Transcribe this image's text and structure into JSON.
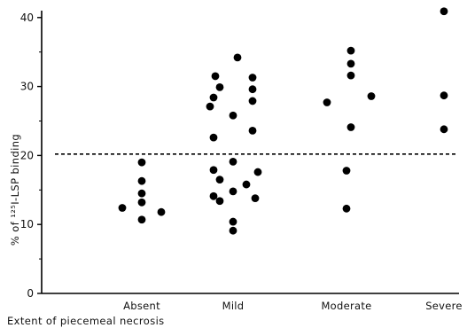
{
  "chart_data": {
    "type": "scatter",
    "title": "",
    "xlabel": "Extent of piecemeal necrosis",
    "ylabel": "% of ¹²⁵I-LSP binding",
    "categories": [
      "Absent",
      "Mild",
      "Moderate",
      "Severe"
    ],
    "ylim": [
      0,
      41
    ],
    "yticks": [
      0,
      10,
      20,
      30,
      40
    ],
    "reference_line": {
      "y": 20.2,
      "style": "dashed"
    },
    "grid": false,
    "legend": "none",
    "colors": {
      "points": "#000000",
      "axis": "#000000"
    },
    "points": [
      {
        "category": "Absent",
        "offset": 0.0,
        "y": 19.0
      },
      {
        "category": "Absent",
        "offset": 0.0,
        "y": 16.3
      },
      {
        "category": "Absent",
        "offset": 0.0,
        "y": 14.5
      },
      {
        "category": "Absent",
        "offset": 0.0,
        "y": 13.2
      },
      {
        "category": "Absent",
        "offset": -0.22,
        "y": 12.4
      },
      {
        "category": "Absent",
        "offset": 0.22,
        "y": 11.8
      },
      {
        "category": "Absent",
        "offset": 0.0,
        "y": 10.7
      },
      {
        "category": "Mild",
        "offset": 0.05,
        "y": 34.2
      },
      {
        "category": "Mild",
        "offset": -0.2,
        "y": 31.5
      },
      {
        "category": "Mild",
        "offset": 0.22,
        "y": 31.3
      },
      {
        "category": "Mild",
        "offset": -0.15,
        "y": 29.9
      },
      {
        "category": "Mild",
        "offset": 0.22,
        "y": 29.6
      },
      {
        "category": "Mild",
        "offset": -0.22,
        "y": 28.4
      },
      {
        "category": "Mild",
        "offset": 0.22,
        "y": 27.9
      },
      {
        "category": "Mild",
        "offset": -0.26,
        "y": 27.1
      },
      {
        "category": "Mild",
        "offset": 0.0,
        "y": 25.8
      },
      {
        "category": "Mild",
        "offset": 0.22,
        "y": 23.6
      },
      {
        "category": "Mild",
        "offset": -0.22,
        "y": 22.6
      },
      {
        "category": "Mild",
        "offset": 0.0,
        "y": 19.1
      },
      {
        "category": "Mild",
        "offset": -0.22,
        "y": 17.9
      },
      {
        "category": "Mild",
        "offset": 0.28,
        "y": 17.6
      },
      {
        "category": "Mild",
        "offset": -0.15,
        "y": 16.5
      },
      {
        "category": "Mild",
        "offset": 0.15,
        "y": 15.8
      },
      {
        "category": "Mild",
        "offset": 0.0,
        "y": 14.8
      },
      {
        "category": "Mild",
        "offset": -0.22,
        "y": 14.1
      },
      {
        "category": "Mild",
        "offset": 0.25,
        "y": 13.8
      },
      {
        "category": "Mild",
        "offset": -0.15,
        "y": 13.4
      },
      {
        "category": "Mild",
        "offset": 0.0,
        "y": 10.4
      },
      {
        "category": "Mild",
        "offset": 0.0,
        "y": 9.1
      },
      {
        "category": "Moderate",
        "offset": 0.05,
        "y": 35.2
      },
      {
        "category": "Moderate",
        "offset": 0.05,
        "y": 33.3
      },
      {
        "category": "Moderate",
        "offset": 0.05,
        "y": 31.6
      },
      {
        "category": "Moderate",
        "offset": 0.28,
        "y": 28.6
      },
      {
        "category": "Moderate",
        "offset": -0.22,
        "y": 27.7
      },
      {
        "category": "Moderate",
        "offset": 0.05,
        "y": 24.1
      },
      {
        "category": "Moderate",
        "offset": 0.0,
        "y": 17.8
      },
      {
        "category": "Moderate",
        "offset": 0.0,
        "y": 12.3
      },
      {
        "category": "Severe",
        "offset": 0.0,
        "y": 40.9
      },
      {
        "category": "Severe",
        "offset": 0.0,
        "y": 28.7
      },
      {
        "category": "Severe",
        "offset": 0.0,
        "y": 23.8
      }
    ]
  }
}
